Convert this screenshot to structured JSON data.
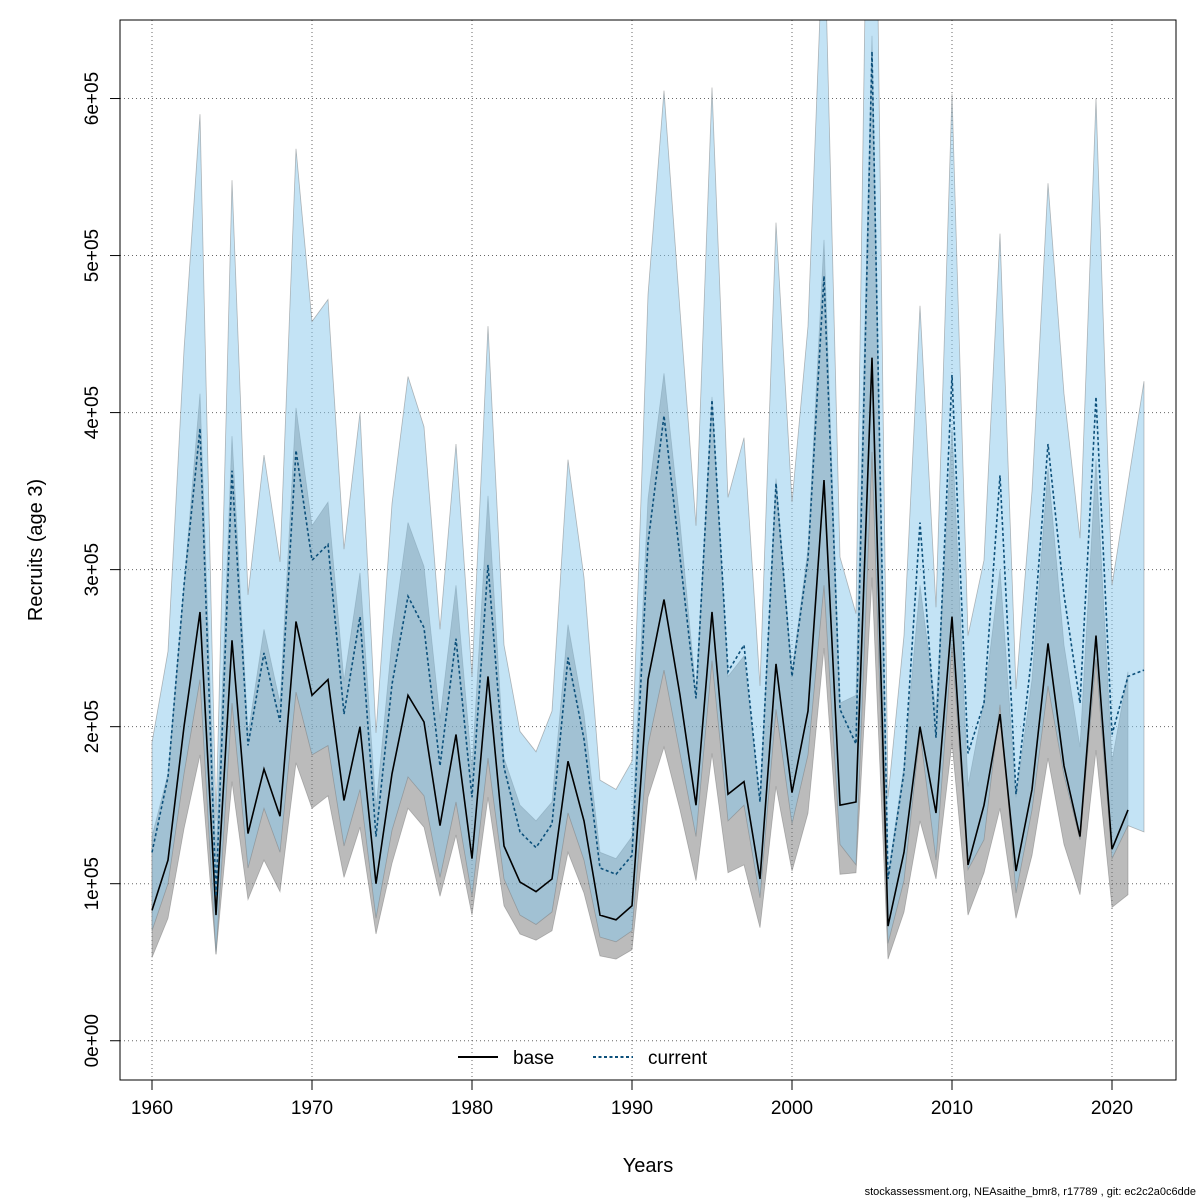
{
  "chart_data": {
    "type": "line",
    "xlabel": "Years",
    "ylabel": "Recruits (age 3)",
    "xlim": [
      1958,
      2024
    ],
    "ylim": [
      -25000,
      650000
    ],
    "x_ticks": [
      1960,
      1970,
      1980,
      1990,
      2000,
      2010,
      2020
    ],
    "y_ticks": [
      0,
      100000,
      200000,
      300000,
      400000,
      500000,
      600000
    ],
    "y_tick_labels": [
      "0e+00",
      "1e+05",
      "2e+05",
      "3e+05",
      "4e+05",
      "5e+05",
      "6e+05"
    ],
    "grid": true,
    "legend_position": "bottom",
    "colors": {
      "base_line": "#000000",
      "base_band": "rgba(105,105,105,0.45)",
      "current_line": "#0b4f7a",
      "current_band": "rgba(135,200,235,0.5)"
    },
    "series": [
      {
        "name": "base",
        "style": "solid",
        "x": [
          1960,
          1961,
          1962,
          1963,
          1964,
          1965,
          1966,
          1967,
          1968,
          1969,
          1970,
          1971,
          1972,
          1973,
          1974,
          1975,
          1976,
          1977,
          1978,
          1979,
          1980,
          1981,
          1982,
          1983,
          1984,
          1985,
          1986,
          1987,
          1988,
          1989,
          1990,
          1991,
          1992,
          1993,
          1994,
          1995,
          1996,
          1997,
          1998,
          1999,
          2000,
          2001,
          2002,
          2003,
          2004,
          2005,
          2006,
          2007,
          2008,
          2009,
          2010,
          2011,
          2012,
          2013,
          2014,
          2015,
          2016,
          2017,
          2018,
          2019,
          2020,
          2021
        ],
        "values": [
          83000,
          115000,
          200000,
          273000,
          80000,
          255000,
          132000,
          173000,
          143000,
          267000,
          220000,
          230000,
          153000,
          200000,
          100000,
          170000,
          220000,
          203000,
          137000,
          195000,
          116000,
          232000,
          124000,
          101000,
          95000,
          103000,
          178000,
          140000,
          80000,
          77000,
          86000,
          230000,
          281000,
          220000,
          150000,
          273000,
          157000,
          165000,
          103000,
          240000,
          158000,
          210000,
          357000,
          150000,
          152000,
          435000,
          73000,
          120000,
          200000,
          145000,
          270000,
          112000,
          150000,
          208000,
          108000,
          160000,
          253000,
          175000,
          130000,
          258000,
          122000,
          147000
        ],
        "lower": [
          53000,
          78000,
          135000,
          182000,
          55000,
          165000,
          90000,
          115000,
          95000,
          177000,
          148000,
          156000,
          104000,
          136000,
          68000,
          113000,
          148000,
          136000,
          92000,
          131000,
          80000,
          155000,
          86000,
          68000,
          64000,
          70000,
          120000,
          94000,
          54000,
          52000,
          58000,
          155000,
          187000,
          147000,
          102000,
          183000,
          107000,
          112000,
          72000,
          162000,
          108000,
          145000,
          250000,
          106000,
          107000,
          295000,
          52000,
          82000,
          140000,
          103000,
          190000,
          80000,
          107000,
          148000,
          78000,
          118000,
          180000,
          125000,
          93000,
          185000,
          85000,
          93000
        ],
        "upper": [
          130000,
          170000,
          290000,
          412000,
          118000,
          385000,
          195000,
          262000,
          215000,
          403000,
          328000,
          343000,
          229000,
          298000,
          148000,
          255000,
          330000,
          302000,
          205000,
          290000,
          173000,
          347000,
          180000,
          150000,
          140000,
          152000,
          265000,
          208000,
          120000,
          116000,
          130000,
          345000,
          425000,
          330000,
          222000,
          410000,
          232000,
          245000,
          153000,
          358000,
          235000,
          313000,
          510000,
          215000,
          220000,
          640000,
          105000,
          175000,
          290000,
          210000,
          390000,
          162000,
          216000,
          300000,
          155000,
          230000,
          365000,
          252000,
          187000,
          370000,
          178000,
          235000
        ]
      },
      {
        "name": "current",
        "style": "dashed",
        "x": [
          1960,
          1961,
          1962,
          1963,
          1964,
          1965,
          1966,
          1967,
          1968,
          1969,
          1970,
          1971,
          1972,
          1973,
          1974,
          1975,
          1976,
          1977,
          1978,
          1979,
          1980,
          1981,
          1982,
          1983,
          1984,
          1985,
          1986,
          1987,
          1988,
          1989,
          1990,
          1991,
          1992,
          1993,
          1994,
          1995,
          1996,
          1997,
          1998,
          1999,
          2000,
          2001,
          2002,
          2003,
          2004,
          2005,
          2006,
          2007,
          2008,
          2009,
          2010,
          2011,
          2012,
          2013,
          2014,
          2015,
          2016,
          2017,
          2018,
          2019,
          2020,
          2021,
          2022
        ],
        "values": [
          120000,
          168000,
          290000,
          390000,
          92000,
          363000,
          188000,
          247000,
          203000,
          376000,
          306000,
          316000,
          208000,
          270000,
          130000,
          227000,
          283000,
          263000,
          175000,
          256000,
          155000,
          303000,
          174000,
          133000,
          123000,
          138000,
          244000,
          192000,
          110000,
          106000,
          118000,
          317000,
          398000,
          308000,
          218000,
          408000,
          235000,
          252000,
          152000,
          355000,
          232000,
          307000,
          487000,
          211000,
          189000,
          630000,
          103000,
          171000,
          330000,
          193000,
          424000,
          183000,
          215000,
          360000,
          157000,
          247000,
          380000,
          284000,
          215000,
          410000,
          195000,
          232000,
          236000
        ],
        "lower": [
          70000,
          100000,
          170000,
          230000,
          55000,
          215000,
          110000,
          148000,
          120000,
          222000,
          182000,
          188000,
          124000,
          160000,
          78000,
          134000,
          168000,
          156000,
          104000,
          152000,
          92000,
          180000,
          103000,
          80000,
          74000,
          82000,
          145000,
          115000,
          66000,
          63000,
          70000,
          188000,
          236000,
          183000,
          130000,
          242000,
          140000,
          150000,
          91000,
          211000,
          138000,
          182000,
          290000,
          125000,
          112000,
          375000,
          62000,
          102000,
          196000,
          115000,
          252000,
          109000,
          128000,
          214000,
          94000,
          147000,
          226000,
          169000,
          128000,
          243000,
          116000,
          137000,
          133000
        ],
        "upper": [
          190000,
          248000,
          440000,
          590000,
          140000,
          548000,
          284000,
          373000,
          305000,
          568000,
          458000,
          472000,
          313000,
          400000,
          196000,
          342000,
          423000,
          391000,
          262000,
          380000,
          232000,
          455000,
          252000,
          197000,
          184000,
          210000,
          370000,
          295000,
          166000,
          160000,
          178000,
          475000,
          605000,
          465000,
          328000,
          607000,
          346000,
          384000,
          226000,
          521000,
          343000,
          455000,
          720000,
          308000,
          272000,
          960000,
          155000,
          258000,
          468000,
          276000,
          603000,
          258000,
          306000,
          514000,
          224000,
          350000,
          546000,
          412000,
          320000,
          600000,
          290000,
          355000,
          420000
        ]
      }
    ]
  },
  "footer_text": "stockassessment.org, NEAsaithe_bmr8, r17789 , git: ec2c2a0c6dde"
}
